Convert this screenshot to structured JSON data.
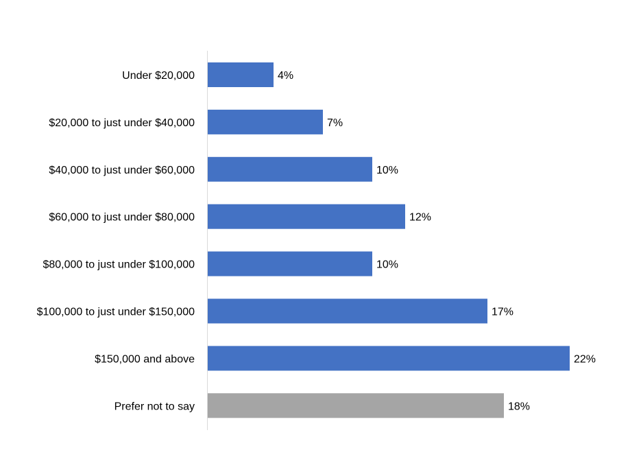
{
  "chart_data": {
    "type": "bar",
    "orientation": "horizontal",
    "categories": [
      "Under $20,000",
      "$20,000 to just under $40,000",
      "$40,000 to just under $60,000",
      "$60,000 to just under $80,000",
      "$80,000 to just under $100,000",
      "$100,000 to just under $150,000",
      "$150,000 and above",
      "Prefer not to say"
    ],
    "values": [
      4,
      7,
      10,
      12,
      10,
      17,
      22,
      18
    ],
    "labels": [
      "4%",
      "7%",
      "10%",
      "12%",
      "10%",
      "17%",
      "22%",
      "18%"
    ],
    "unit": "%",
    "colors": [
      "#4472C4",
      "#4472C4",
      "#4472C4",
      "#4472C4",
      "#4472C4",
      "#4472C4",
      "#4472C4",
      "#A5A5A5"
    ],
    "xlim": [
      0,
      25
    ],
    "grid": false,
    "legend": "none"
  }
}
